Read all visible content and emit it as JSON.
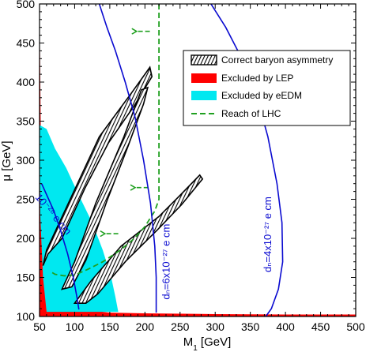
{
  "chart_data": {
    "type": "line",
    "xlabel": "M₁ [GeV]",
    "ylabel": "μ [GeV]",
    "xlim": [
      50,
      500
    ],
    "ylim": [
      100,
      500
    ],
    "xticks": [
      50,
      100,
      150,
      200,
      250,
      300,
      350,
      400,
      450,
      500
    ],
    "yticks": [
      100,
      150,
      200,
      250,
      300,
      350,
      400,
      450,
      500
    ],
    "legend_position": "top-right",
    "colors": {
      "lep": "#ff0000",
      "edm": "#00e8f0",
      "lhc": "#20a020",
      "dn": "#0a0ad0",
      "baryon": "#000000"
    },
    "legend": [
      {
        "key": "baryon",
        "label": "Correct baryon asymmetry"
      },
      {
        "key": "lep",
        "label": "Excluded by LEP"
      },
      {
        "key": "edm",
        "label": "Excluded by eEDM"
      },
      {
        "key": "lhc",
        "label": "Reach of LHC"
      }
    ],
    "annotations": [
      {
        "key": "edm_26",
        "text": "10⁻²⁶ e cm",
        "x": 66,
        "y": 228,
        "rotate": 50
      },
      {
        "key": "dn_6",
        "text": "dₙ=6x10⁻²⁷ e cm",
        "x": 235,
        "y": 170,
        "rotate": -90
      },
      {
        "key": "dn_4",
        "text": "dₙ=4x10⁻²⁷ e cm",
        "x": 380,
        "y": 205,
        "rotate": -90
      }
    ],
    "series": [
      {
        "key": "lep_region",
        "kind": "fill",
        "color": "lep",
        "points": [
          [
            50,
            102
          ],
          [
            50,
            500
          ],
          [
            52,
            310
          ],
          [
            55,
            230
          ],
          [
            58,
            190
          ],
          [
            62,
            165
          ],
          [
            66,
            150
          ],
          [
            72,
            138
          ],
          [
            80,
            127
          ],
          [
            90,
            118
          ],
          [
            100,
            113
          ],
          [
            120,
            108
          ],
          [
            150,
            105
          ],
          [
            200,
            104
          ],
          [
            300,
            103
          ],
          [
            400,
            102.5
          ],
          [
            500,
            102.5
          ],
          [
            500,
            100
          ],
          [
            50,
            100
          ]
        ]
      },
      {
        "key": "edm_region",
        "kind": "fill",
        "color": "edm",
        "points": [
          [
            50,
            345
          ],
          [
            60,
            340
          ],
          [
            72,
            315
          ],
          [
            88,
            290
          ],
          [
            106,
            255
          ],
          [
            125,
            220
          ],
          [
            140,
            185
          ],
          [
            152,
            150
          ],
          [
            158,
            125
          ],
          [
            162,
            106
          ],
          [
            60,
            106
          ],
          [
            55,
            150
          ],
          [
            51,
            230
          ]
        ]
      },
      {
        "key": "baryon_band_1",
        "kind": "hatch",
        "color": "baryon",
        "points": [
          [
            55,
            165
          ],
          [
            60,
            185
          ],
          [
            135,
            330
          ],
          [
            180,
            385
          ],
          [
            200,
            410
          ],
          [
            207,
            419
          ],
          [
            210,
            407
          ],
          [
            185,
            370
          ],
          [
            148,
            322
          ],
          [
            115,
            265
          ],
          [
            82,
            200
          ],
          [
            62,
            180
          ]
        ]
      },
      {
        "key": "baryon_band_2",
        "kind": "hatch",
        "color": "baryon",
        "points": [
          [
            82,
            135
          ],
          [
            100,
            170
          ],
          [
            130,
            245
          ],
          [
            170,
            330
          ],
          [
            195,
            390
          ],
          [
            204,
            393
          ],
          [
            198,
            372
          ],
          [
            176,
            318
          ],
          [
            146,
            248
          ],
          [
            116,
            172
          ],
          [
            96,
            138
          ]
        ]
      },
      {
        "key": "baryon_band_3",
        "kind": "hatch",
        "color": "baryon",
        "points": [
          [
            100,
            117
          ],
          [
            123,
            145
          ],
          [
            166,
            190
          ],
          [
            220,
            228
          ],
          [
            250,
            255
          ],
          [
            278,
            281
          ],
          [
            282,
            276
          ],
          [
            252,
            243
          ],
          [
            218,
            211
          ],
          [
            173,
            171
          ],
          [
            133,
            129
          ],
          [
            116,
            117
          ]
        ]
      },
      {
        "key": "lhc_reach",
        "kind": "line",
        "color": "lhc",
        "dashed": true,
        "points": [
          [
            220,
            500
          ],
          [
            220,
            250
          ],
          [
            214,
            235
          ],
          [
            200,
            215
          ],
          [
            185,
            200
          ],
          [
            165,
            185
          ],
          [
            140,
            170
          ],
          [
            118,
            160
          ],
          [
            100,
            153
          ],
          [
            85,
            152
          ],
          [
            72,
            154
          ],
          [
            65,
            158
          ]
        ]
      },
      {
        "key": "lhc_arrow_1",
        "kind": "arrow",
        "color": "lhc",
        "points": [
          [
            207,
            465
          ],
          [
            187,
            465
          ]
        ]
      },
      {
        "key": "lhc_arrow_2",
        "kind": "arrow",
        "color": "lhc",
        "points": [
          [
            205,
            265
          ],
          [
            185,
            265
          ]
        ]
      },
      {
        "key": "lhc_arrow_3",
        "kind": "arrow",
        "color": "lhc",
        "points": [
          [
            162,
            206
          ],
          [
            142,
            206
          ]
        ]
      },
      {
        "key": "edm_contour_26",
        "kind": "line",
        "color": "dn",
        "points": [
          [
            53,
            270
          ],
          [
            60,
            256
          ],
          [
            70,
            236
          ],
          [
            80,
            210
          ],
          [
            90,
            180
          ],
          [
            98,
            150
          ],
          [
            103,
            126
          ],
          [
            106,
            109
          ]
        ]
      },
      {
        "key": "dn_contour_6",
        "kind": "line",
        "color": "dn",
        "points": [
          [
            135,
            500
          ],
          [
            146,
            470
          ],
          [
            158,
            440
          ],
          [
            172,
            400
          ],
          [
            186,
            355
          ],
          [
            198,
            300
          ],
          [
            208,
            245
          ],
          [
            214,
            190
          ],
          [
            216,
            150
          ],
          [
            216,
            105
          ]
        ]
      },
      {
        "key": "dn_contour_4",
        "kind": "line",
        "color": "dn",
        "points": [
          [
            294,
            500
          ],
          [
            315,
            470
          ],
          [
            338,
            430
          ],
          [
            358,
            385
          ],
          [
            375,
            330
          ],
          [
            388,
            270
          ],
          [
            395,
            220
          ],
          [
            396,
            170
          ],
          [
            390,
            135
          ],
          [
            380,
            110
          ],
          [
            372,
            100
          ]
        ]
      }
    ]
  }
}
